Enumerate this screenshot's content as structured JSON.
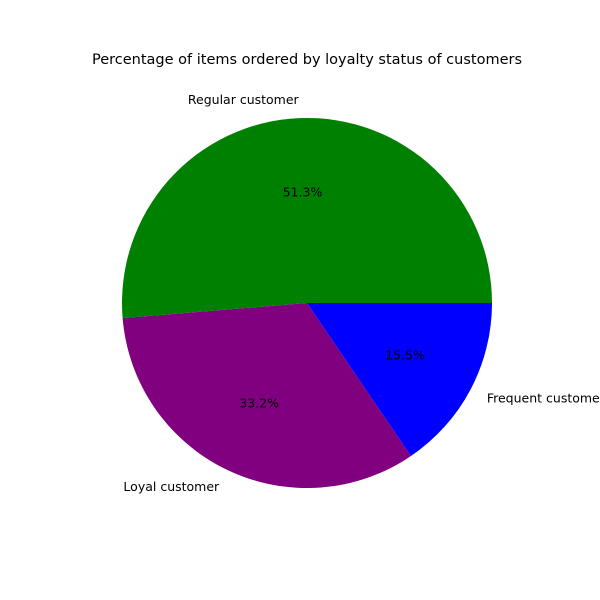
{
  "chart_data": {
    "type": "pie",
    "title": "Percentage of items ordered by loyalty status of customers",
    "labels": [
      "Regular customer",
      "Loyal customer",
      "Frequent customer"
    ],
    "values": [
      51.3,
      33.2,
      15.5
    ],
    "percent_labels": [
      "51.3%",
      "33.2%",
      "15.5%"
    ],
    "colors": [
      "#008000",
      "#800080",
      "#0000ff"
    ],
    "start_angle_deg": 0,
    "direction": "counterclockwise"
  }
}
